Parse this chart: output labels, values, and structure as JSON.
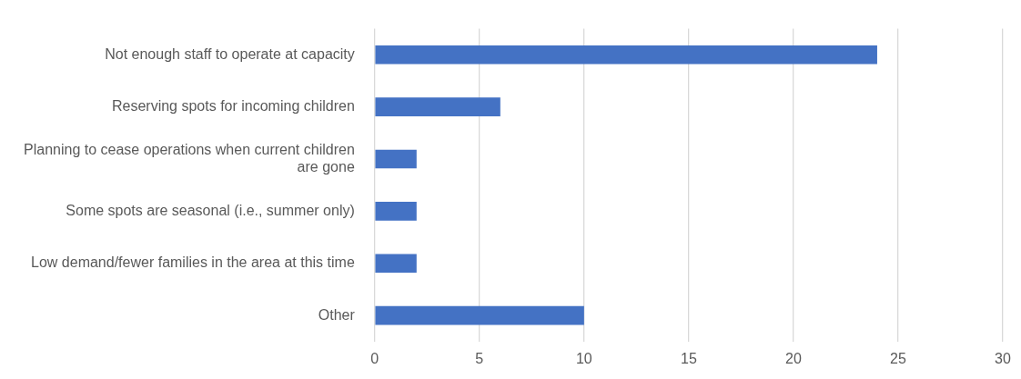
{
  "chart_data": {
    "type": "bar",
    "orientation": "horizontal",
    "categories": [
      "Not enough staff to operate at capacity",
      "Reserving spots for incoming children",
      "Planning to cease operations when current children are gone",
      "Some spots are seasonal (i.e., summer only)",
      "Low demand/fewer families in the area at this time",
      "Other"
    ],
    "values": [
      24,
      6,
      2,
      2,
      2,
      10
    ],
    "color": "#4472c4",
    "xlim": [
      0,
      30
    ],
    "xticks": [
      0,
      5,
      10,
      15,
      20,
      25,
      30
    ],
    "grid": "x",
    "legend": false
  }
}
